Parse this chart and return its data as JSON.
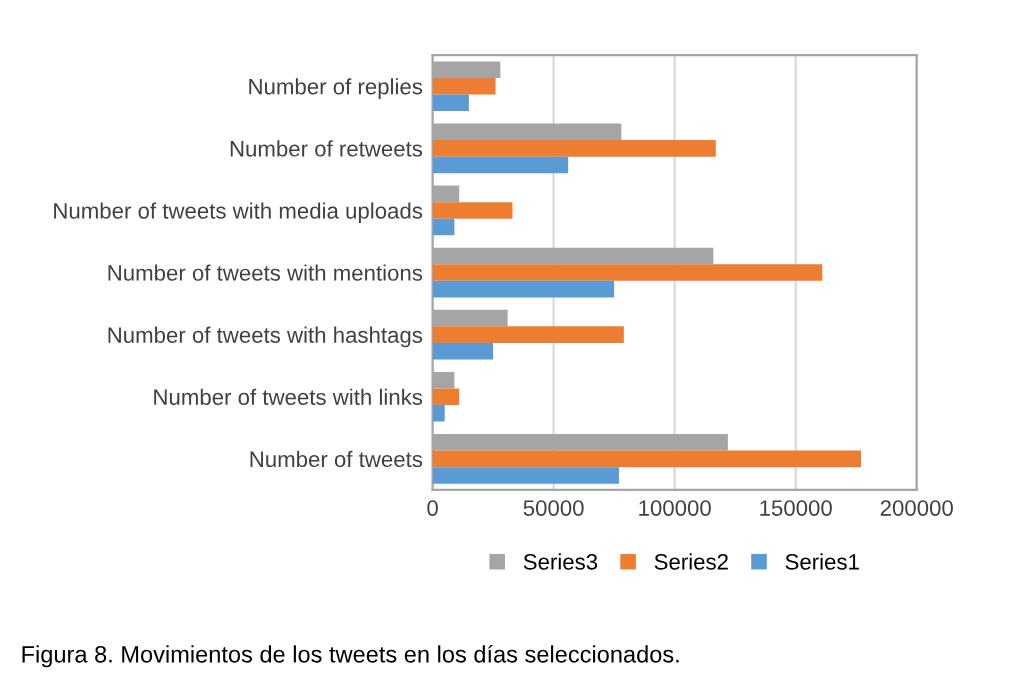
{
  "chart_data": {
    "type": "bar",
    "orientation": "horizontal",
    "categories": [
      "Number of replies",
      "Number of retweets",
      "Number of tweets with media uploads",
      "Number of tweets with mentions",
      "Number of tweets with hashtags",
      "Number of tweets with links",
      "Number of tweets"
    ],
    "series": [
      {
        "name": "Series3",
        "color": "#a5a5a5",
        "values": [
          28000,
          78000,
          11000,
          116000,
          31000,
          9000,
          122000
        ]
      },
      {
        "name": "Series2",
        "color": "#ed7d31",
        "values": [
          26000,
          117000,
          33000,
          161000,
          79000,
          11000,
          177000
        ]
      },
      {
        "name": "Series1",
        "color": "#5b9bd5",
        "values": [
          15000,
          56000,
          9000,
          75000,
          25000,
          5000,
          77000
        ]
      }
    ],
    "xlim": [
      0,
      200000
    ],
    "xticks": [
      0,
      50000,
      100000,
      150000,
      200000
    ],
    "grid": "x",
    "legend": "bottom",
    "annotations": [
      "Figura 8. Movimientos de los tweets en los días seleccionados."
    ]
  }
}
